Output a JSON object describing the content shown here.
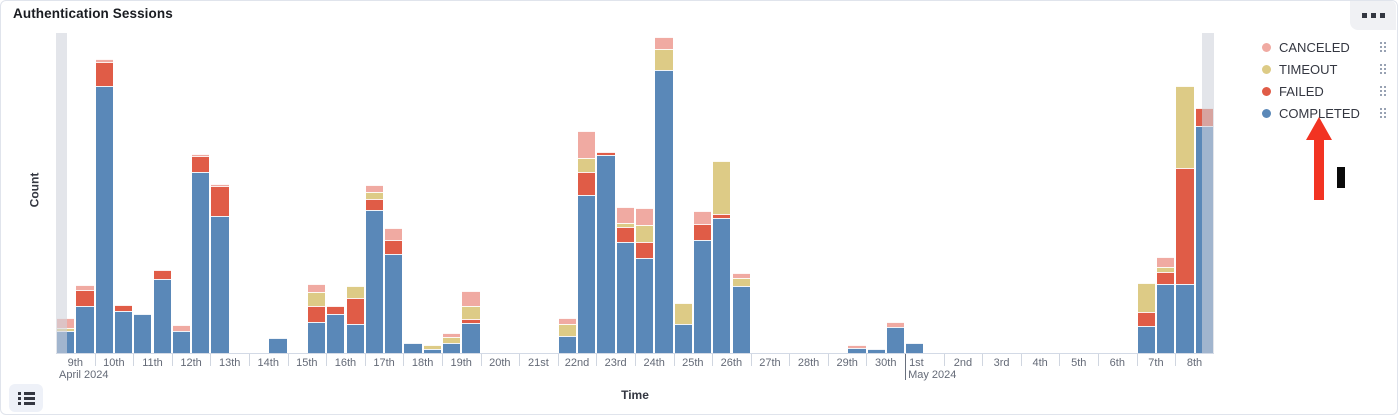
{
  "panel": {
    "title": "Authentication Sessions"
  },
  "icons": {
    "top_right_button": "panel-boxes-icon",
    "bottom_left_button": "legend-list-icon",
    "legend_item_handle": "drag-handle-icon"
  },
  "legend": {
    "items": [
      {
        "label": "CANCELED",
        "color": "#f0aaa2"
      },
      {
        "label": "TIMEOUT",
        "color": "#ddcb86"
      },
      {
        "label": "FAILED",
        "color": "#e05c47"
      },
      {
        "label": "COMPLETED",
        "color": "#5a88b8"
      }
    ]
  },
  "annotations": {
    "arrow": {
      "shape": "up-arrow",
      "color": "#f23322",
      "points_at": "COMPLETED legend item"
    },
    "cursor_bar": {
      "shape": "vertical-black-bar",
      "color": "#0a0a0a"
    }
  },
  "chart_data": {
    "type": "bar",
    "stacked": true,
    "title": "Authentication Sessions",
    "xlabel": "Time",
    "ylabel": "Count",
    "y_ticks_visible": false,
    "ylim": [
      0,
      324
    ],
    "bucket_interval": "12h (2 bars per day)",
    "partial_bucket_bands": {
      "left": true,
      "right": true,
      "color": "rgba(208,211,220,0.6)"
    },
    "x_days": [
      {
        "label": "9th",
        "month": "April 2024"
      },
      {
        "label": "10th"
      },
      {
        "label": "11th"
      },
      {
        "label": "12th"
      },
      {
        "label": "13th"
      },
      {
        "label": "14th"
      },
      {
        "label": "15th"
      },
      {
        "label": "16th"
      },
      {
        "label": "17th"
      },
      {
        "label": "18th"
      },
      {
        "label": "19th"
      },
      {
        "label": "20th"
      },
      {
        "label": "21st"
      },
      {
        "label": "22nd"
      },
      {
        "label": "23rd"
      },
      {
        "label": "24th"
      },
      {
        "label": "25th"
      },
      {
        "label": "26th"
      },
      {
        "label": "27th"
      },
      {
        "label": "28th"
      },
      {
        "label": "29th"
      },
      {
        "label": "30th"
      },
      {
        "label": "1st",
        "month": "May 2024"
      },
      {
        "label": "2nd"
      },
      {
        "label": "3rd"
      },
      {
        "label": "4th"
      },
      {
        "label": "5th"
      },
      {
        "label": "6th"
      },
      {
        "label": "7th"
      },
      {
        "label": "8th"
      }
    ],
    "series": [
      {
        "name": "COMPLETED",
        "color": "#5a88b8",
        "values": [
          22,
          48,
          270,
          43,
          40,
          75,
          22,
          183,
          139,
          0,
          0,
          15,
          0,
          31,
          40,
          29,
          145,
          100,
          10,
          4,
          10,
          30,
          0,
          0,
          0,
          0,
          17,
          160,
          200,
          112,
          96,
          287,
          29,
          114,
          137,
          68,
          0,
          0,
          0,
          0,
          0,
          5,
          4,
          26,
          10,
          0,
          0,
          0,
          0,
          0,
          0,
          0,
          0,
          0,
          0,
          0,
          27,
          70,
          70,
          230
        ]
      },
      {
        "name": "FAILED",
        "color": "#e05c47",
        "values": [
          0,
          16,
          25,
          6,
          0,
          9,
          0,
          16,
          30,
          0,
          0,
          0,
          0,
          17,
          8,
          27,
          11,
          14,
          0,
          0,
          0,
          4,
          0,
          0,
          0,
          0,
          0,
          23,
          4,
          16,
          16,
          0,
          0,
          17,
          4,
          0,
          0,
          0,
          0,
          0,
          0,
          0,
          0,
          0,
          0,
          0,
          0,
          0,
          0,
          0,
          0,
          0,
          0,
          0,
          0,
          0,
          15,
          12,
          117,
          18
        ]
      },
      {
        "name": "TIMEOUT",
        "color": "#ddcb86",
        "values": [
          3,
          0,
          0,
          0,
          0,
          0,
          0,
          0,
          0,
          0,
          0,
          0,
          0,
          14,
          0,
          12,
          7,
          0,
          0,
          4,
          6,
          14,
          0,
          0,
          0,
          0,
          12,
          14,
          0,
          4,
          18,
          21,
          22,
          0,
          53,
          8,
          0,
          0,
          0,
          0,
          0,
          0,
          0,
          0,
          0,
          0,
          0,
          0,
          0,
          0,
          0,
          0,
          0,
          0,
          0,
          0,
          29,
          5,
          83,
          0
        ]
      },
      {
        "name": "CANCELED",
        "color": "#f0aaa2",
        "values": [
          10,
          5,
          3,
          0,
          0,
          0,
          6,
          3,
          2,
          0,
          0,
          0,
          0,
          8,
          0,
          0,
          7,
          13,
          0,
          0,
          4,
          15,
          0,
          0,
          0,
          0,
          6,
          28,
          0,
          16,
          17,
          12,
          0,
          13,
          0,
          5,
          0,
          0,
          0,
          0,
          0,
          3,
          0,
          5,
          0,
          0,
          0,
          0,
          0,
          0,
          0,
          0,
          0,
          0,
          0,
          0,
          0,
          10,
          0,
          0
        ]
      }
    ]
  }
}
